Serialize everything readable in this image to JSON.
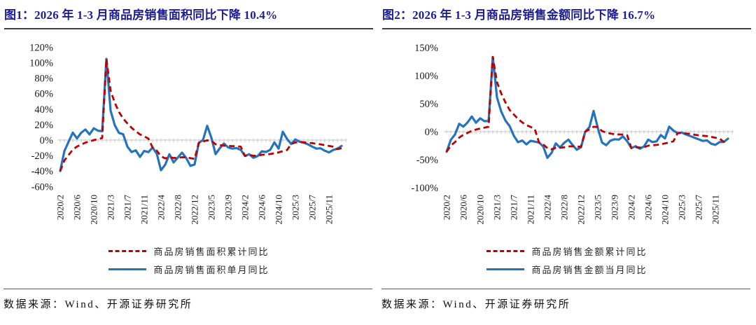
{
  "page": {
    "background": "#FFFFFF"
  },
  "colors": {
    "title_navy": "#1C1C96",
    "cumulative_red": "#C00000",
    "monthly_blue": "#2373BE",
    "axis_gray": "#C9C9C9",
    "rule_dark": "#3F3F3F",
    "rule_source": "#595959"
  },
  "footer_sources": [
    "数据来源：Wind、开源证券研究所",
    "数据来源：Wind、开源证券研究所"
  ],
  "chart_data": [
    {
      "type": "line",
      "title": "图1：2026 年 1-3 月商品房销售面积同比下降 10.4%",
      "ylim": [
        -60,
        120
      ],
      "ytick_labels": [
        "120%",
        "100%",
        "80%",
        "60%",
        "40%",
        "20%",
        "0%",
        "-20%",
        "-40%",
        "-60%"
      ],
      "x_tick_labels": [
        "2020/2",
        "2020/6",
        "2020/10",
        "2021/3",
        "2021/7",
        "2021/11",
        "2022/4",
        "2022/8",
        "2022/12",
        "2023/5",
        "2023/9",
        "2024/2",
        "2024/6",
        "2024/10",
        "2025/3",
        "2025/7",
        "2025/11"
      ],
      "x_tick_every": 4,
      "grid": false,
      "legend_position": "bottom",
      "categories": [
        "2020/2",
        "2020/3",
        "2020/4",
        "2020/5",
        "2020/6",
        "2020/7",
        "2020/8",
        "2020/9",
        "2020/10",
        "2020/11",
        "2020/12",
        "2021/2",
        "2021/3",
        "2021/4",
        "2021/5",
        "2021/6",
        "2021/7",
        "2021/8",
        "2021/9",
        "2021/10",
        "2021/11",
        "2021/12",
        "2022/2",
        "2022/3",
        "2022/4",
        "2022/5",
        "2022/6",
        "2022/7",
        "2022/8",
        "2022/9",
        "2022/10",
        "2022/11",
        "2022/12",
        "2023/2",
        "2023/3",
        "2023/4",
        "2023/5",
        "2023/6",
        "2023/7",
        "2023/8",
        "2023/9",
        "2023/10",
        "2023/11",
        "2023/12",
        "2024/2",
        "2024/3",
        "2024/4",
        "2024/5",
        "2024/6",
        "2024/7",
        "2024/8",
        "2024/9",
        "2024/10",
        "2024/11",
        "2024/12",
        "2025/2",
        "2025/3",
        "2025/4",
        "2025/5",
        "2025/6",
        "2025/7",
        "2025/8",
        "2025/9",
        "2025/10",
        "2025/11",
        "2025/12",
        "2026/2",
        "2026/3"
      ],
      "series": [
        {
          "name": "商品房销售面积累计同比",
          "color": "#C00000",
          "line_style": "dashed",
          "values": [
            -40.0,
            -26.3,
            -19.3,
            -12.3,
            -8.4,
            -5.8,
            -3.3,
            -1.8,
            0.0,
            1.3,
            2.6,
            104.9,
            63.8,
            48.1,
            36.3,
            27.7,
            21.5,
            15.9,
            11.3,
            7.3,
            4.8,
            1.9,
            -9.6,
            -13.8,
            -20.9,
            -23.6,
            -22.2,
            -23.1,
            -23.0,
            -22.2,
            -22.3,
            -23.3,
            -24.3,
            -3.6,
            -1.8,
            -0.4,
            -0.9,
            -5.3,
            -6.5,
            -7.1,
            -7.5,
            -7.8,
            -8.0,
            -8.5,
            -20.5,
            -19.4,
            -20.2,
            -20.3,
            -19.0,
            -18.6,
            -18.0,
            -17.1,
            -15.8,
            -14.3,
            -12.9,
            -5.1,
            -3.0,
            -2.8,
            -2.9,
            -3.5,
            -4.0,
            -4.7,
            -5.5,
            -6.5,
            -7.5,
            -8.6,
            -11.8,
            -10.4
          ]
        },
        {
          "name": "商品房销售面积单月同比",
          "color": "#2373BE",
          "line_style": "solid",
          "values": [
            -40.0,
            -14.1,
            -2.1,
            9.7,
            2.1,
            9.5,
            13.7,
            7.3,
            15.3,
            12.1,
            11.5,
            104.9,
            38.1,
            19.2,
            9.2,
            7.5,
            -8.5,
            -15.5,
            -13.2,
            -21.7,
            -14.0,
            -15.6,
            -9.6,
            -17.7,
            -39.0,
            -31.8,
            -18.3,
            -28.9,
            -22.6,
            -16.2,
            -23.2,
            -33.3,
            -31.5,
            -3.6,
            0.1,
            18.5,
            3.0,
            -18.2,
            -10.5,
            -4.5,
            -9.5,
            -11.0,
            -10.3,
            -12.7,
            -20.5,
            -18.3,
            -22.9,
            -20.7,
            -14.5,
            -15.4,
            -12.6,
            -3.0,
            -11.0,
            10.9,
            1.5,
            -5.1,
            0.9,
            -2.1,
            -3.3,
            -5.5,
            -8.4,
            -11.0,
            -10.6,
            -13.8,
            -15.9,
            -12.8,
            -11.0,
            -7.5
          ]
        }
      ]
    },
    {
      "type": "line",
      "title": "图2：2026 年 1-3 月商品房销售金额同比下降 16.7%",
      "ylim": [
        -100,
        150
      ],
      "ytick_labels": [
        "150%",
        "100%",
        "50%",
        "0%",
        "-50%",
        "-100%"
      ],
      "x_tick_labels": [
        "2020/2",
        "2020/6",
        "2020/10",
        "2021/3",
        "2021/7",
        "2021/11",
        "2022/4",
        "2022/8",
        "2022/12",
        "2023/5",
        "2023/9",
        "2024/2",
        "2024/6",
        "2024/10",
        "2025/3",
        "2025/7",
        "2025/11"
      ],
      "x_tick_every": 4,
      "grid": false,
      "legend_position": "bottom",
      "categories": [
        "2020/2",
        "2020/3",
        "2020/4",
        "2020/5",
        "2020/6",
        "2020/7",
        "2020/8",
        "2020/9",
        "2020/10",
        "2020/11",
        "2020/12",
        "2021/2",
        "2021/3",
        "2021/4",
        "2021/5",
        "2021/6",
        "2021/7",
        "2021/8",
        "2021/9",
        "2021/10",
        "2021/11",
        "2021/12",
        "2022/2",
        "2022/3",
        "2022/4",
        "2022/5",
        "2022/6",
        "2022/7",
        "2022/8",
        "2022/9",
        "2022/10",
        "2022/11",
        "2022/12",
        "2023/2",
        "2023/3",
        "2023/4",
        "2023/5",
        "2023/6",
        "2023/7",
        "2023/8",
        "2023/9",
        "2023/10",
        "2023/11",
        "2023/12",
        "2024/2",
        "2024/3",
        "2024/4",
        "2024/5",
        "2024/6",
        "2024/7",
        "2024/8",
        "2024/9",
        "2024/10",
        "2024/11",
        "2024/12",
        "2025/2",
        "2025/3",
        "2025/4",
        "2025/5",
        "2025/6",
        "2025/7",
        "2025/8",
        "2025/9",
        "2025/10",
        "2025/11",
        "2025/12",
        "2026/2",
        "2026/3"
      ],
      "series": [
        {
          "name": "商品房销售金额累计同比",
          "color": "#C00000",
          "line_style": "dashed",
          "values": [
            -35.9,
            -24.7,
            -18.6,
            -10.6,
            -5.4,
            -2.1,
            1.6,
            3.8,
            5.8,
            7.2,
            8.7,
            133.4,
            88.5,
            68.2,
            52.4,
            38.9,
            30.7,
            22.8,
            16.6,
            11.8,
            8.5,
            4.8,
            -19.3,
            -22.7,
            -29.5,
            -31.5,
            -28.9,
            -28.8,
            -27.9,
            -26.3,
            -26.1,
            -26.6,
            -26.7,
            -0.1,
            4.1,
            8.8,
            8.4,
            1.1,
            -1.5,
            -3.2,
            -4.6,
            -4.9,
            -5.2,
            -6.5,
            -29.3,
            -27.6,
            -28.3,
            -27.9,
            -25.0,
            -24.3,
            -23.6,
            -22.7,
            -20.9,
            -19.2,
            -17.1,
            -2.6,
            -2.1,
            -3.2,
            -3.8,
            -5.5,
            -6.5,
            -7.3,
            -7.9,
            -9.3,
            -10.8,
            -12.3,
            -18.3,
            -16.7
          ]
        },
        {
          "name": "商品房销售金额当月同比",
          "color": "#2373BE",
          "line_style": "solid",
          "values": [
            -35.9,
            -14.6,
            -5.0,
            14.0,
            9.0,
            16.6,
            27.1,
            16.0,
            23.9,
            18.9,
            18.9,
            133.4,
            61.0,
            36.0,
            20.0,
            10.0,
            -7.1,
            -18.7,
            -15.8,
            -22.6,
            -16.3,
            -17.8,
            -19.3,
            -26.2,
            -46.6,
            -37.7,
            -20.8,
            -28.2,
            -19.9,
            -14.2,
            -23.7,
            -32.2,
            -27.7,
            -0.1,
            8.0,
            37.0,
            6.8,
            -19.3,
            -24.1,
            -16.0,
            -13.5,
            -14.1,
            -8.5,
            -17.1,
            -29.3,
            -25.9,
            -30.4,
            -26.4,
            -14.3,
            -18.5,
            -17.2,
            -6.0,
            -12.0,
            9.0,
            2.0,
            -2.6,
            -1.6,
            -5.0,
            -7.8,
            -10.8,
            -13.6,
            -16.5,
            -15.5,
            -21.5,
            -23.5,
            -18.5,
            -18.3,
            -12.5
          ]
        }
      ]
    }
  ]
}
